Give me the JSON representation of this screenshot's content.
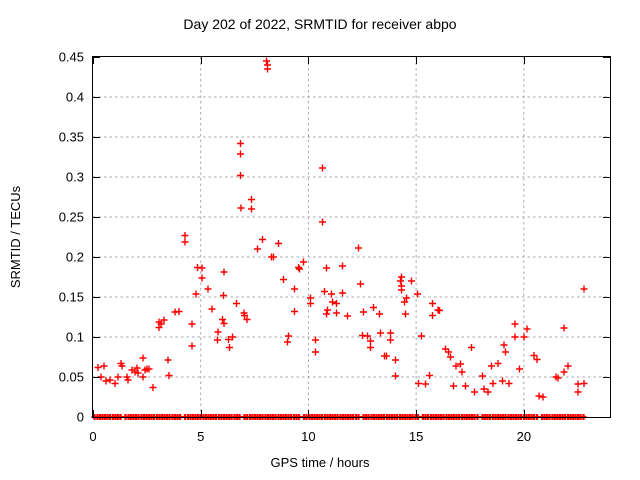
{
  "window": {
    "title": "Day 202 of 2022, SRMTID for receiver abpo"
  },
  "colors": {
    "marker": "#ff0000",
    "grid": "#a8a8a8",
    "axis": "#000000",
    "background": "#ffffff"
  },
  "chart_data": {
    "type": "scatter",
    "title": "Day 202 of 2022, SRMTID for receiver abpo",
    "xlabel": "GPS time / hours",
    "ylabel": "SRMTID / TECUs",
    "xlim": [
      0,
      24
    ],
    "ylim": [
      0,
      0.45
    ],
    "grid": true,
    "legend": "none",
    "marker": {
      "shape": "plus",
      "color": "#ff0000",
      "size": 7
    },
    "x_ticks": {
      "values": [
        0,
        5,
        10,
        15,
        20
      ],
      "labels": [
        "0",
        "5",
        "10",
        "15",
        "20"
      ]
    },
    "y_ticks": {
      "values": [
        0,
        0.05,
        0.1,
        0.15,
        0.2,
        0.25,
        0.3,
        0.35,
        0.4,
        0.45
      ],
      "labels": [
        "0",
        "0.05",
        "0.1",
        "0.15",
        "0.2",
        "0.25",
        "0.3",
        "0.35",
        "0.4",
        "0.45"
      ]
    },
    "series": [
      {
        "name": "SRMTID",
        "points": [
          [
            0.23,
            0.062
          ],
          [
            0.37,
            0.05
          ],
          [
            0.51,
            0.064
          ],
          [
            0.6,
            0.045
          ],
          [
            0.79,
            0.046
          ],
          [
            1.02,
            0.042
          ],
          [
            1.16,
            0.05
          ],
          [
            1.3,
            0.067
          ],
          [
            1.35,
            0.064
          ],
          [
            1.58,
            0.05
          ],
          [
            1.63,
            0.046
          ],
          [
            1.81,
            0.059
          ],
          [
            1.95,
            0.056
          ],
          [
            2.05,
            0.061
          ],
          [
            2.09,
            0.055
          ],
          [
            2.33,
            0.074
          ],
          [
            2.33,
            0.05
          ],
          [
            2.42,
            0.059
          ],
          [
            2.51,
            0.06
          ],
          [
            2.6,
            0.06
          ],
          [
            2.79,
            0.037
          ],
          [
            3.07,
            0.119
          ],
          [
            3.07,
            0.112
          ],
          [
            3.16,
            0.116
          ],
          [
            3.3,
            0.121
          ],
          [
            3.49,
            0.071
          ],
          [
            3.53,
            0.052
          ],
          [
            3.81,
            0.131
          ],
          [
            4.0,
            0.132
          ],
          [
            4.28,
            0.227
          ],
          [
            4.28,
            0.219
          ],
          [
            4.6,
            0.116
          ],
          [
            4.6,
            0.089
          ],
          [
            4.79,
            0.154
          ],
          [
            4.84,
            0.187
          ],
          [
            5.07,
            0.186
          ],
          [
            5.07,
            0.174
          ],
          [
            5.35,
            0.16
          ],
          [
            5.53,
            0.135
          ],
          [
            5.77,
            0.096
          ],
          [
            5.81,
            0.106
          ],
          [
            6.0,
            0.122
          ],
          [
            6.05,
            0.152
          ],
          [
            6.09,
            0.181
          ],
          [
            6.09,
            0.117
          ],
          [
            6.28,
            0.097
          ],
          [
            6.33,
            0.087
          ],
          [
            6.47,
            0.1
          ],
          [
            6.65,
            0.142
          ],
          [
            6.84,
            0.342
          ],
          [
            6.84,
            0.329
          ],
          [
            6.84,
            0.302
          ],
          [
            6.88,
            0.261
          ],
          [
            7.02,
            0.13
          ],
          [
            7.04,
            0.127
          ],
          [
            7.16,
            0.122
          ],
          [
            7.35,
            0.272
          ],
          [
            7.35,
            0.26
          ],
          [
            7.63,
            0.21
          ],
          [
            7.86,
            0.222
          ],
          [
            8.05,
            0.445
          ],
          [
            8.09,
            0.44
          ],
          [
            8.09,
            0.435
          ],
          [
            8.28,
            0.2
          ],
          [
            8.37,
            0.2
          ],
          [
            8.6,
            0.217
          ],
          [
            8.84,
            0.172
          ],
          [
            9.02,
            0.094
          ],
          [
            9.07,
            0.101
          ],
          [
            9.35,
            0.16
          ],
          [
            9.35,
            0.132
          ],
          [
            9.53,
            0.187
          ],
          [
            9.58,
            0.185
          ],
          [
            9.77,
            0.194
          ],
          [
            10.09,
            0.149
          ],
          [
            10.09,
            0.142
          ],
          [
            10.33,
            0.096
          ],
          [
            10.33,
            0.081
          ],
          [
            10.65,
            0.311
          ],
          [
            10.65,
            0.244
          ],
          [
            10.74,
            0.157
          ],
          [
            10.84,
            0.186
          ],
          [
            10.84,
            0.129
          ],
          [
            10.88,
            0.134
          ],
          [
            11.07,
            0.154
          ],
          [
            11.12,
            0.144
          ],
          [
            11.3,
            0.142
          ],
          [
            11.3,
            0.13
          ],
          [
            11.58,
            0.189
          ],
          [
            11.58,
            0.155
          ],
          [
            11.81,
            0.126
          ],
          [
            12.33,
            0.211
          ],
          [
            12.42,
            0.166
          ],
          [
            12.51,
            0.102
          ],
          [
            12.56,
            0.131
          ],
          [
            12.74,
            0.101
          ],
          [
            12.88,
            0.095
          ],
          [
            12.88,
            0.087
          ],
          [
            13.02,
            0.137
          ],
          [
            13.3,
            0.129
          ],
          [
            13.35,
            0.105
          ],
          [
            13.53,
            0.076
          ],
          [
            13.63,
            0.076
          ],
          [
            13.81,
            0.105
          ],
          [
            13.81,
            0.096
          ],
          [
            14.05,
            0.071
          ],
          [
            14.05,
            0.051
          ],
          [
            14.28,
            0.17
          ],
          [
            14.33,
            0.175
          ],
          [
            14.33,
            0.164
          ],
          [
            14.33,
            0.159
          ],
          [
            14.47,
            0.144
          ],
          [
            14.51,
            0.129
          ],
          [
            14.56,
            0.149
          ],
          [
            14.79,
            0.17
          ],
          [
            15.07,
            0.154
          ],
          [
            15.12,
            0.042
          ],
          [
            15.26,
            0.101
          ],
          [
            15.44,
            0.041
          ],
          [
            15.63,
            0.052
          ],
          [
            15.77,
            0.142
          ],
          [
            15.77,
            0.127
          ],
          [
            16.02,
            0.134
          ],
          [
            16.09,
            0.133
          ],
          [
            16.37,
            0.085
          ],
          [
            16.51,
            0.081
          ],
          [
            16.6,
            0.075
          ],
          [
            16.74,
            0.039
          ],
          [
            16.84,
            0.064
          ],
          [
            17.07,
            0.066
          ],
          [
            17.12,
            0.056
          ],
          [
            17.3,
            0.039
          ],
          [
            17.58,
            0.087
          ],
          [
            17.72,
            0.031
          ],
          [
            18.09,
            0.051
          ],
          [
            18.14,
            0.035
          ],
          [
            18.33,
            0.031
          ],
          [
            18.51,
            0.064
          ],
          [
            18.56,
            0.042
          ],
          [
            18.79,
            0.067
          ],
          [
            19.02,
            0.045
          ],
          [
            19.07,
            0.09
          ],
          [
            19.16,
            0.081
          ],
          [
            19.3,
            0.042
          ],
          [
            19.58,
            0.116
          ],
          [
            19.58,
            0.1
          ],
          [
            19.81,
            0.06
          ],
          [
            20.0,
            0.1
          ],
          [
            20.14,
            0.11
          ],
          [
            20.47,
            0.077
          ],
          [
            20.6,
            0.072
          ],
          [
            20.7,
            0.026
          ],
          [
            20.88,
            0.025
          ],
          [
            21.49,
            0.05
          ],
          [
            21.58,
            0.049
          ],
          [
            21.86,
            0.111
          ],
          [
            21.86,
            0.056
          ],
          [
            22.05,
            0.064
          ],
          [
            22.51,
            0.041
          ],
          [
            22.51,
            0.031
          ],
          [
            22.79,
            0.16
          ],
          [
            22.79,
            0.042
          ]
        ]
      }
    ],
    "zero_band": {
      "value": 0,
      "h_start": 0.08,
      "h_end": 22.85,
      "step": 0.12
    }
  }
}
